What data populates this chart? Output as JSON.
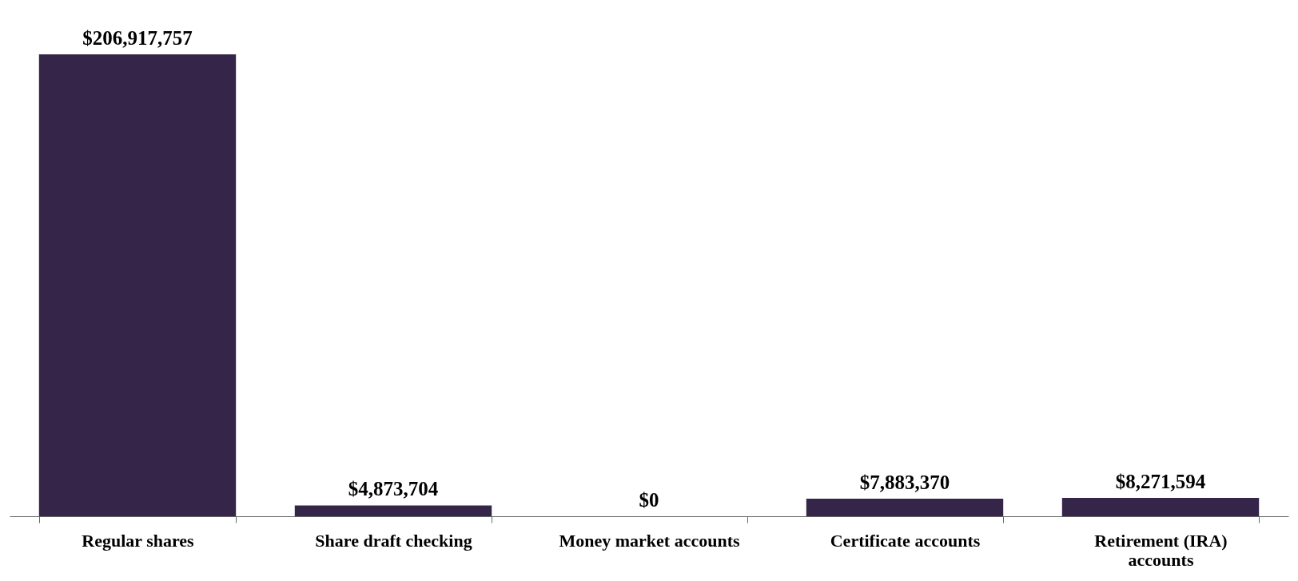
{
  "chart_data": {
    "type": "bar",
    "categories": [
      "Regular shares",
      "Share draft checking",
      "Money market accounts",
      "Certificate accounts",
      "Retirement (IRA) accounts"
    ],
    "values": [
      206917757,
      4873704,
      0,
      7883370,
      8271594
    ],
    "value_labels": [
      "$206,917,757",
      "$4,873,704",
      "$0",
      "$7,883,370",
      "$8,271,594"
    ],
    "color": "#352649",
    "grid": false
  }
}
